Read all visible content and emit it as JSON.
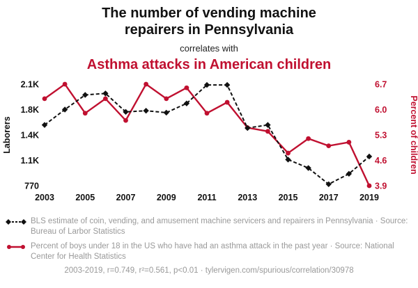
{
  "header": {
    "title": "The number of vending machine repairers in Pennsylvania",
    "connector": "correlates with",
    "subtitle": "Asthma attacks in American children"
  },
  "colors": {
    "accent_red": "#c01030",
    "series_black": "#111111",
    "legend_text": "#999999"
  },
  "chart_data": {
    "type": "line",
    "title": "The number of vending machine repairers in Pennsylvania correlates with Asthma attacks in American children",
    "x": [
      2003,
      2004,
      2005,
      2006,
      2007,
      2008,
      2009,
      2010,
      2011,
      2012,
      2013,
      2014,
      2015,
      2016,
      2017,
      2018,
      2019
    ],
    "x_tick_labels": [
      "2003",
      "2005",
      "2007",
      "2009",
      "2011",
      "2013",
      "2015",
      "2017",
      "2019"
    ],
    "grid": false,
    "legend_position": "bottom",
    "left_axis": {
      "label": "Laborers",
      "min": 770,
      "max": 2090,
      "ticks": [
        {
          "value": 2090,
          "label": "2.1K"
        },
        {
          "value": 1760,
          "label": "1.8K"
        },
        {
          "value": 1430,
          "label": "1.4K"
        },
        {
          "value": 1100,
          "label": "1.1K"
        },
        {
          "value": 770,
          "label": "770"
        }
      ]
    },
    "right_axis": {
      "label": "Percent of children",
      "min": 3.9,
      "max": 6.7,
      "ticks": [
        {
          "value": 6.7,
          "label": "6.7"
        },
        {
          "value": 6.0,
          "label": "6.0"
        },
        {
          "value": 5.3,
          "label": "5.3"
        },
        {
          "value": 4.6,
          "label": "4.6"
        },
        {
          "value": 3.9,
          "label": "3.9"
        }
      ]
    },
    "series": [
      {
        "name": "BLS estimate of coin, vending, and amusement machine servicers and repairers in Pennsylvania",
        "axis": "left",
        "color": "#111111",
        "style": "dashed",
        "marker": "diamond",
        "values": [
          1560,
          1760,
          1950,
          1970,
          1730,
          1745,
          1720,
          1840,
          2080,
          2080,
          1520,
          1560,
          1110,
          1000,
          790,
          925,
          1150
        ]
      },
      {
        "name": "Percent of boys under 18 in the US who have had an asthma attack in the past year",
        "axis": "right",
        "color": "#c01030",
        "style": "solid",
        "marker": "circle",
        "values": [
          6.3,
          6.7,
          5.9,
          6.3,
          5.7,
          6.7,
          6.3,
          6.6,
          5.9,
          6.2,
          5.5,
          5.4,
          4.8,
          5.2,
          5.0,
          5.1,
          3.9
        ]
      }
    ]
  },
  "legend": [
    {
      "marker": "black-dashed-diamond",
      "text": "BLS estimate of coin, vending, and amusement machine servicers and repairers in Pennsylvania · Source: Bureau of Larbor Statistics"
    },
    {
      "marker": "red-line-circle",
      "text": "Percent of boys under 18 in the US who have had an asthma attack in the past year · Source: National Center for Health Statistics"
    }
  ],
  "footer": {
    "text": "2003-2019, r=0.749, r²=0.561, p<0.01 · tylervigen.com/spurious/correlation/30978"
  }
}
